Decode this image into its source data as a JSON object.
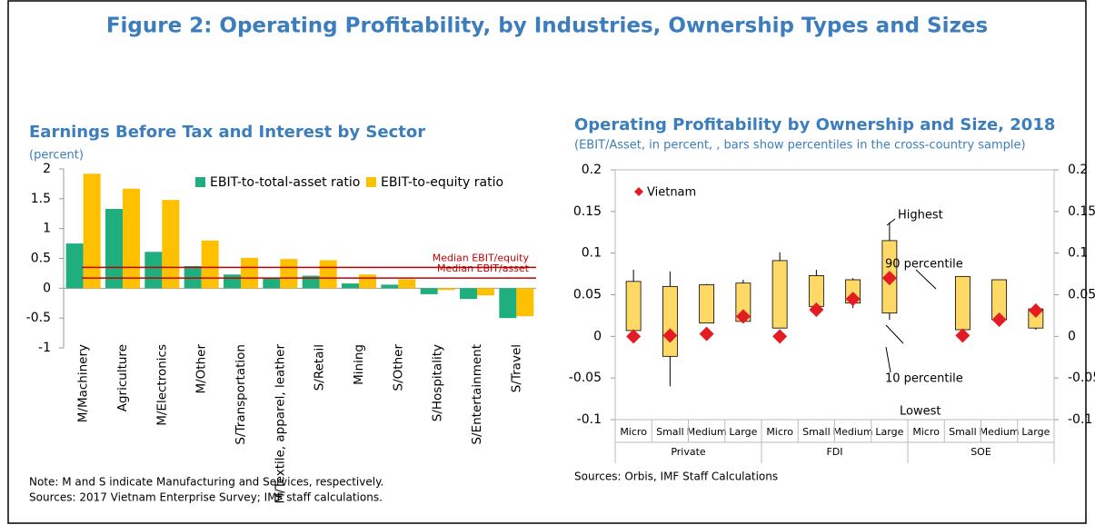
{
  "figure_title": "Figure 2: Operating Profitability, by Industries, Ownership Types and Sizes",
  "chart_data": [
    {
      "type": "bar",
      "title": "Earnings Before Tax and Interest by Sector",
      "subtitle": "(percent)",
      "categories": [
        "M/Machinery",
        "Agriculture",
        "M/Electronics",
        "M/Other",
        "S/Transportation",
        "M/Textile, apparel, leather",
        "S/Retail",
        "Mining",
        "S/Other",
        "S/Hospitality",
        "S/Entertainment",
        "S/Travel"
      ],
      "series": [
        {
          "name": "EBIT-to-total-asset ratio",
          "color": "#1fae7e",
          "values": [
            0.75,
            1.33,
            0.61,
            0.37,
            0.23,
            0.17,
            0.21,
            0.08,
            0.06,
            -0.1,
            -0.18,
            -0.5
          ]
        },
        {
          "name": "EBIT-to-equity ratio",
          "color": "#ffc000",
          "values": [
            1.92,
            1.67,
            1.48,
            0.8,
            0.51,
            0.49,
            0.47,
            0.23,
            0.15,
            -0.03,
            -0.12,
            -0.47
          ]
        }
      ],
      "reference_lines": [
        {
          "label": "Median EBIT/equity",
          "value": 0.35,
          "color": "#c00000"
        },
        {
          "label": "Median EBIT/asset",
          "value": 0.17,
          "color": "#c00000"
        }
      ],
      "ylim": [
        -1,
        2
      ],
      "yticks": [
        -1,
        -0.5,
        0,
        0.5,
        1,
        1.5,
        2
      ],
      "notes": [
        "Note: M and S indicate Manufacturing and Services, respectively.",
        "Sources: 2017 Vietnam Enterprise Survey; IMF staff calculations."
      ]
    },
    {
      "type": "range",
      "title": "Operating Profitability by Ownership and Size, 2018",
      "subtitle": "(EBIT/Asset, in percent, , bars show percentiles in the cross-country sample)",
      "categories": [
        "Micro",
        "Small",
        "Medium",
        "Large",
        "Micro",
        "Small",
        "Medium",
        "Large",
        "Micro",
        "Small",
        "Medium",
        "Large"
      ],
      "groups": [
        "Private",
        "FDI",
        "SOE"
      ],
      "series": [
        {
          "name": "Lowest",
          "values": [
            0.007,
            -0.06,
            0.016,
            0.018,
            0.01,
            0.033,
            0.034,
            0.02,
            null,
            0.008,
            0.016,
            0.008
          ]
        },
        {
          "name": "10 percentile",
          "values": [
            0.007,
            -0.024,
            0.016,
            0.018,
            0.01,
            0.036,
            0.04,
            0.028,
            null,
            0.008,
            0.02,
            0.01
          ]
        },
        {
          "name": "90 percentile",
          "values": [
            0.066,
            0.06,
            0.062,
            0.064,
            0.091,
            0.073,
            0.068,
            0.115,
            null,
            0.072,
            0.068,
            0.033
          ]
        },
        {
          "name": "Highest",
          "values": [
            0.08,
            0.078,
            0.063,
            0.068,
            0.101,
            0.08,
            0.07,
            0.137,
            null,
            0.072,
            0.068,
            0.033
          ]
        },
        {
          "name": "Vietnam",
          "color": "#e31b23",
          "values": [
            0,
            0.001,
            0.003,
            0.024,
            0,
            0.032,
            0.045,
            0.07,
            null,
            0.001,
            0.02,
            0.031
          ]
        }
      ],
      "box_color": "#ffd966",
      "ylim": [
        -0.1,
        0.2
      ],
      "yticks": [
        -0.1,
        -0.05,
        0,
        0.05,
        0.1,
        0.15,
        0.2
      ],
      "source": "Sources: Orbis, IMF Staff Calculations"
    }
  ]
}
